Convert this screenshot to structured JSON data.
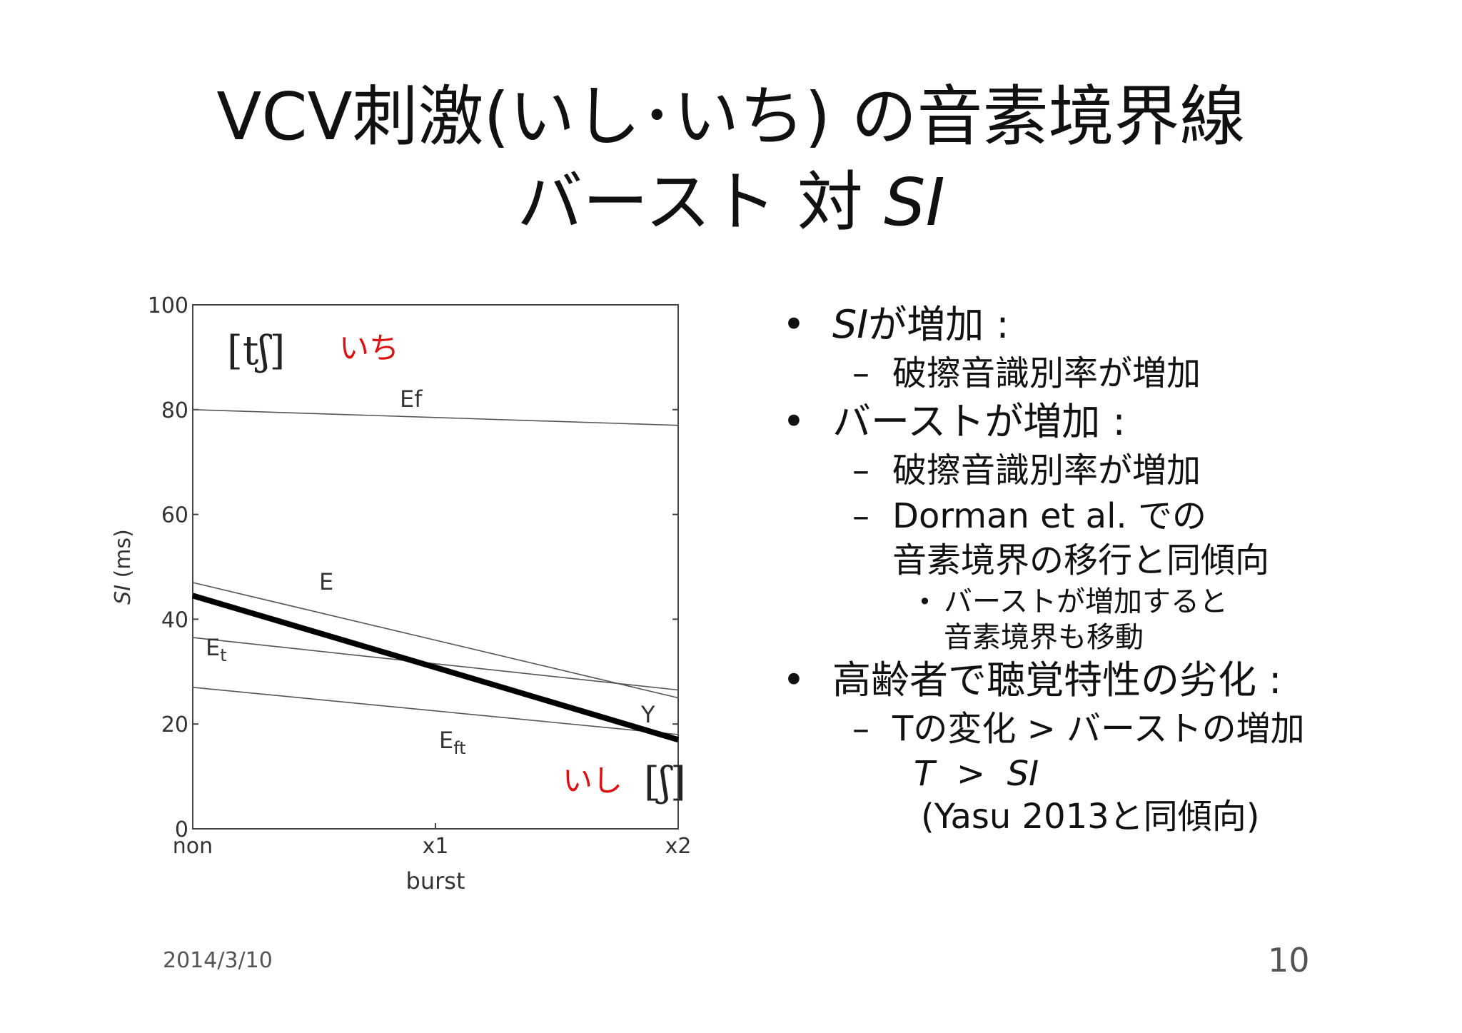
{
  "slide": {
    "title_line1": "VCV刺激(いし･いち) の音素境界線",
    "title_line2_prefix": "バースト 対 ",
    "title_line2_italic": "SI",
    "date": "2014/3/10",
    "page": "10"
  },
  "bullets": {
    "b1_italic": "SI",
    "b1_text": "が増加 :",
    "b1_sub1": "破擦音識別率が増加",
    "b2_text": "バーストが増加 :",
    "b2_sub1": "破擦音識別率が増加",
    "b2_sub2_line1": "Dorman et al. での",
    "b2_sub2_line2": "音素境界の移行と同傾向",
    "b2_sub3_line1": "バーストが増加すると",
    "b2_sub3_line2": "音素境界も移動",
    "b3_text": "高齢者で聴覚特性の劣化 :",
    "b3_sub1": "Tの変化 > バーストの増加",
    "b3_line2_a": "T",
    "b3_line2_op": "  >  ",
    "b3_line2_b": "SI",
    "b3_line3": "(Yasu 2013と同傾向)"
  },
  "chart_data": {
    "type": "line",
    "xlabel": "burst",
    "ylabel": "SI (ms)",
    "categories": [
      "non",
      "x1",
      "x2"
    ],
    "ylim": [
      0,
      100
    ],
    "yticks": [
      0,
      20,
      40,
      60,
      80,
      100
    ],
    "series": [
      {
        "name": "Ef",
        "values": [
          80,
          78.5,
          77
        ],
        "color": "#555555",
        "bold": false
      },
      {
        "name": "E",
        "values": [
          47,
          36,
          25
        ],
        "color": "#555555",
        "bold": false
      },
      {
        "name": "Et",
        "values": [
          36.5,
          31.5,
          26.5
        ],
        "color": "#555555",
        "bold": false
      },
      {
        "name": "Eft",
        "values": [
          27,
          22.5,
          18
        ],
        "color": "#555555",
        "bold": false
      },
      {
        "name": "Y",
        "values": [
          44.5,
          30.8,
          17
        ],
        "color": "#000000",
        "bold": true
      }
    ],
    "region_labels": {
      "upper_phonetic": "[tʃ]",
      "upper_kana": "いち",
      "lower_phonetic": "[ʃ]",
      "lower_kana": "いし",
      "kana_color": "#dd1111"
    }
  }
}
